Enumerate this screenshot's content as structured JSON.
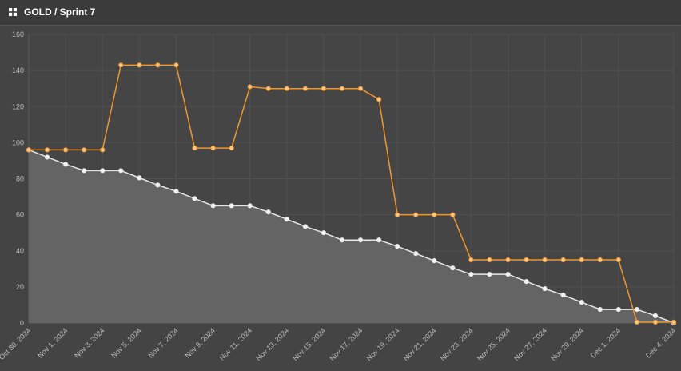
{
  "header": {
    "title": "GOLD / Sprint 7",
    "icon": "grid-icon"
  },
  "chart_data": {
    "type": "line",
    "title": "",
    "xlabel": "",
    "ylabel": "",
    "ylim": [
      0,
      160
    ],
    "yticks": [
      0,
      20,
      40,
      60,
      80,
      100,
      120,
      140,
      160
    ],
    "grid": true,
    "x_tick_labels": [
      "Oct 30, 2024",
      "Nov 1, 2024",
      "Nov 3, 2024",
      "Nov 5, 2024",
      "Nov 7, 2024",
      "Nov 9, 2024",
      "Nov 11, 2024",
      "Nov 13, 2024",
      "Nov 15, 2024",
      "Nov 17, 2024",
      "Nov 19, 2024",
      "Nov 21, 2024",
      "Nov 23, 2024",
      "Nov 25, 2024",
      "Nov 27, 2024",
      "Nov 29, 2024",
      "Dec 1, 2024",
      "Dec 4, 2024"
    ],
    "x": [
      "Oct 30, 2024",
      "Oct 31, 2024",
      "Nov 1, 2024",
      "Nov 2, 2024",
      "Nov 3, 2024",
      "Nov 4, 2024",
      "Nov 5, 2024",
      "Nov 6, 2024",
      "Nov 7, 2024",
      "Nov 8, 2024",
      "Nov 9, 2024",
      "Nov 10, 2024",
      "Nov 11, 2024",
      "Nov 12, 2024",
      "Nov 13, 2024",
      "Nov 14, 2024",
      "Nov 15, 2024",
      "Nov 16, 2024",
      "Nov 17, 2024",
      "Nov 18, 2024",
      "Nov 19, 2024",
      "Nov 20, 2024",
      "Nov 21, 2024",
      "Nov 22, 2024",
      "Nov 23, 2024",
      "Nov 24, 2024",
      "Nov 25, 2024",
      "Nov 26, 2024",
      "Nov 27, 2024",
      "Nov 28, 2024",
      "Nov 29, 2024",
      "Nov 30, 2024",
      "Dec 1, 2024",
      "Dec 2, 2024",
      "Dec 3, 2024",
      "Dec 4, 2024"
    ],
    "series": [
      {
        "color": "#f0962e",
        "fill": false,
        "values": [
          96,
          96,
          96,
          96,
          96,
          143,
          143,
          143,
          143,
          97,
          97,
          97,
          131,
          130,
          130,
          130,
          130,
          130,
          130,
          124,
          60,
          60,
          60,
          60,
          35,
          35,
          35,
          35,
          35,
          35,
          35,
          35,
          35,
          0.5,
          0.5,
          0.5
        ]
      },
      {
        "color": "#e6e6e6",
        "fill": true,
        "fill_color": "#646464",
        "values": [
          96,
          92,
          88,
          84.5,
          84.5,
          84.5,
          80.5,
          76.5,
          73,
          69,
          65,
          65,
          65,
          61.5,
          57.5,
          53.5,
          50,
          46,
          46,
          46,
          42.5,
          38.5,
          34.5,
          30.5,
          27,
          27,
          27,
          23,
          19,
          15.5,
          11.5,
          7.5,
          7.5,
          7.5,
          4,
          0
        ]
      }
    ],
    "colors": {
      "background": "#444444",
      "plot_background": "#454545",
      "grid": "#505050",
      "axis_text": "#bcbcbc"
    }
  }
}
